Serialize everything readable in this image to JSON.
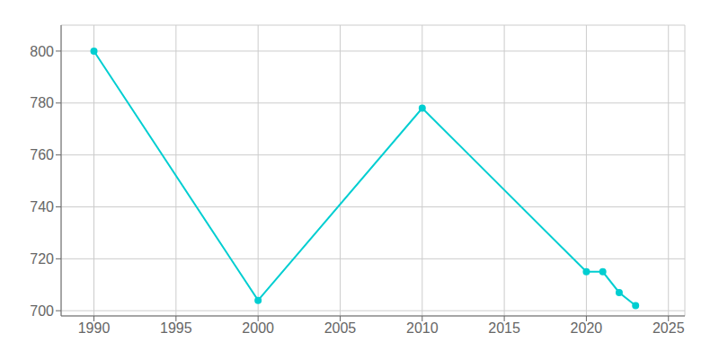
{
  "chart_data": {
    "type": "line",
    "x": [
      1990,
      2000,
      2010,
      2020,
      2021,
      2022,
      2023
    ],
    "values": [
      800,
      704,
      778,
      715,
      715,
      707,
      702
    ],
    "color": "#00CED1",
    "marker": "circle",
    "xlim": [
      1988,
      2026
    ],
    "ylim": [
      698,
      810
    ],
    "xticks": [
      1990,
      1995,
      2000,
      2005,
      2010,
      2015,
      2020,
      2025
    ],
    "yticks": [
      700,
      720,
      740,
      760,
      780,
      800
    ],
    "grid": true
  }
}
